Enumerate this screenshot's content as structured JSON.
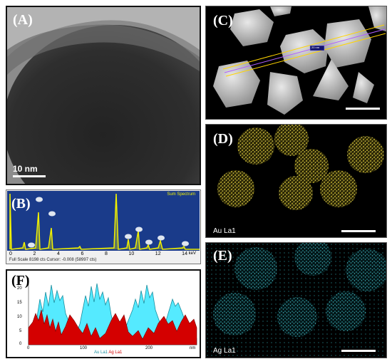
{
  "panels": {
    "a": {
      "label": "(A)",
      "scale_bar": "10 nm"
    },
    "b": {
      "label": "(B)",
      "spectrum_title": "Sum Spectrum",
      "tick_labels": [
        "0",
        "2",
        "4",
        "6",
        "8",
        "10",
        "12",
        "14"
      ],
      "unit": "keV",
      "status_text": "Full Scale 8198 cts Cursor: -0.008 (58997 cts)"
    },
    "c": {
      "label": "(C)",
      "line_tag": "20 nm"
    },
    "d": {
      "label": "(D)",
      "element": "Au La1"
    },
    "e": {
      "label": "(E)",
      "element": "Ag La1"
    },
    "f": {
      "label": "(F)",
      "y_ticks": [
        "20",
        "15",
        "10",
        "5",
        "0"
      ],
      "x_ticks": [
        "0",
        "100",
        "200"
      ],
      "x_unit": "nm",
      "legend_au": "Au La1",
      "legend_ag": "Ag La1"
    }
  },
  "colors": {
    "spectrum_bg": "#1a3b8a",
    "spectrum_line": "#f0f000",
    "au_map": "#e6d23c",
    "ag_map": "#3cc8d2",
    "profile_au": "#d40000",
    "profile_ag": "#55eaff"
  }
}
